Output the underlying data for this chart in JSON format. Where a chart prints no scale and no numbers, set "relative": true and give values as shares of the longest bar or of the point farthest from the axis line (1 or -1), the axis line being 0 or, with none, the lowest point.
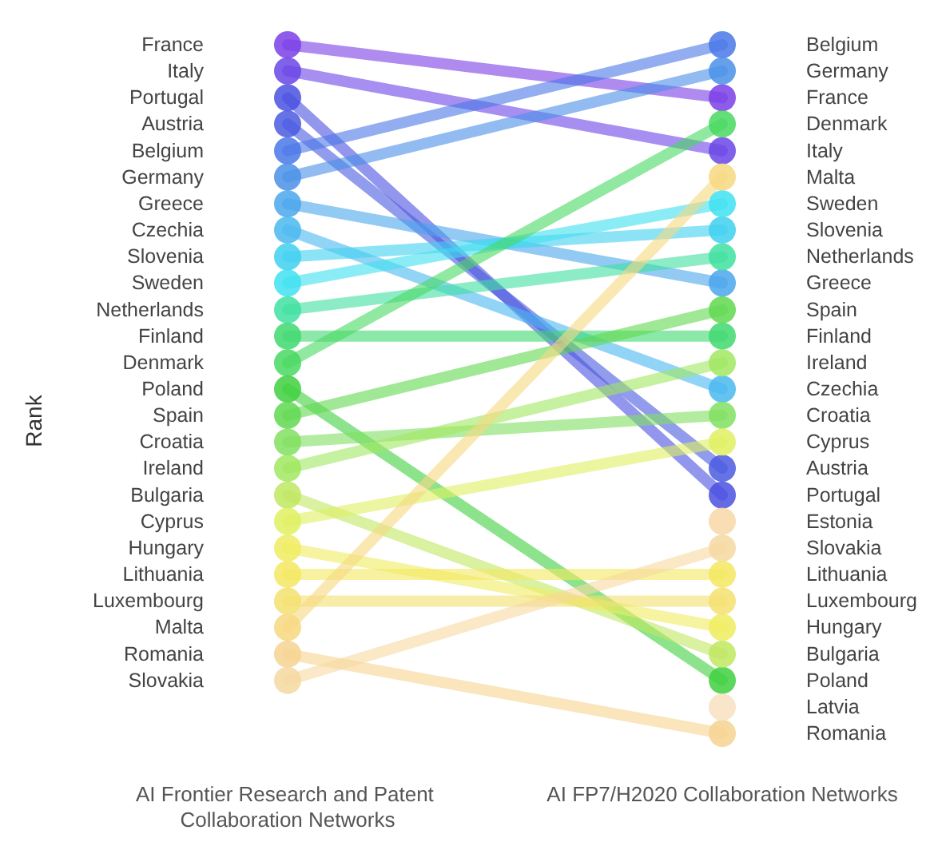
{
  "chart_data": {
    "type": "line",
    "ylabel": "Rank",
    "marker": "circle",
    "relative": true,
    "categories": [
      "AI Frontier Research and Patent Collaboration Networks",
      "AI FP7/H2020 Collaboration Networks"
    ],
    "series": [
      {
        "name": "France",
        "color": "#7a3ee6",
        "values": [
          1,
          0.923
        ]
      },
      {
        "name": "Italy",
        "color": "#6a45e6",
        "values": [
          0.962,
          0.846
        ]
      },
      {
        "name": "Portugal",
        "color": "#4a50e0",
        "values": [
          0.923,
          0.346
        ]
      },
      {
        "name": "Austria",
        "color": "#4a5ae0",
        "values": [
          0.885,
          0.385
        ]
      },
      {
        "name": "Belgium",
        "color": "#4a78e8",
        "values": [
          0.846,
          1
        ]
      },
      {
        "name": "Germany",
        "color": "#4a90e8",
        "values": [
          0.808,
          0.962
        ]
      },
      {
        "name": "Greece",
        "color": "#4aa6ec",
        "values": [
          0.769,
          0.654
        ]
      },
      {
        "name": "Czechia",
        "color": "#4ab8f0",
        "values": [
          0.731,
          0.5
        ]
      },
      {
        "name": "Slovenia",
        "color": "#40d0f0",
        "values": [
          0.692,
          0.731
        ]
      },
      {
        "name": "Sweden",
        "color": "#40e0f0",
        "values": [
          0.654,
          0.769
        ]
      },
      {
        "name": "Netherlands",
        "color": "#40e0a0",
        "values": [
          0.615,
          0.692
        ]
      },
      {
        "name": "Finland",
        "color": "#40d870",
        "values": [
          0.577,
          0.577
        ]
      },
      {
        "name": "Denmark",
        "color": "#48d860",
        "values": [
          0.538,
          0.885
        ]
      },
      {
        "name": "Poland",
        "color": "#40d040",
        "values": [
          0.5,
          0.077
        ]
      },
      {
        "name": "Spain",
        "color": "#60d850",
        "values": [
          0.462,
          0.615
        ]
      },
      {
        "name": "Croatia",
        "color": "#80e060",
        "values": [
          0.423,
          0.462
        ]
      },
      {
        "name": "Ireland",
        "color": "#a0e860",
        "values": [
          0.385,
          0.538
        ]
      },
      {
        "name": "Bulgaria",
        "color": "#c0e860",
        "values": [
          0.346,
          0.115
        ]
      },
      {
        "name": "Cyprus",
        "color": "#e0f060",
        "values": [
          0.308,
          0.423
        ]
      },
      {
        "name": "Hungary",
        "color": "#f0ec60",
        "values": [
          0.269,
          0.154
        ]
      },
      {
        "name": "Lithuania",
        "color": "#f4e860",
        "values": [
          0.231,
          0.231
        ]
      },
      {
        "name": "Luxembourg",
        "color": "#f4e070",
        "values": [
          0.192,
          0.192
        ]
      },
      {
        "name": "Malta",
        "color": "#f6d880",
        "values": [
          0.154,
          0.808
        ]
      },
      {
        "name": "Romania",
        "color": "#f6d490",
        "values": [
          0.115,
          0
        ]
      },
      {
        "name": "Slovakia",
        "color": "#f6d8a0",
        "values": [
          0.077,
          0.269
        ]
      },
      {
        "name": "Estonia",
        "color": "#f8d8a8",
        "values": [
          null,
          0.308
        ]
      },
      {
        "name": "Latvia",
        "color": "#f8e0c0",
        "values": [
          null,
          0.038
        ]
      }
    ]
  }
}
